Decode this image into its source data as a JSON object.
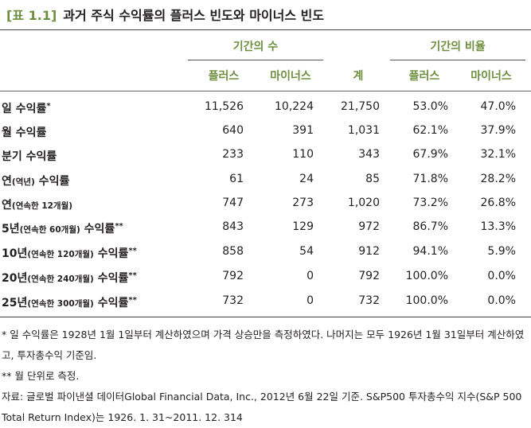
{
  "title": {
    "tag": "[표 1.1]",
    "text": "과거 주식 수익률의 플러스 빈도와 마이너스 빈도"
  },
  "header": {
    "group_count": "기간의 수",
    "group_ratio": "기간의 비율",
    "plus": "플러스",
    "minus": "마이너스",
    "total": "계",
    "plus2": "플러스",
    "minus2": "마이너스"
  },
  "rows": [
    {
      "main": "일 수익률",
      "small": "",
      "main2": "",
      "mark": "*",
      "plus": "11,526",
      "minus": "10,224",
      "total": "21,750",
      "plus_pct": "53.0%",
      "minus_pct": "47.0%"
    },
    {
      "main": "월 수익률",
      "small": "",
      "main2": "",
      "mark": "",
      "plus": "640",
      "minus": "391",
      "total": "1,031",
      "plus_pct": "62.1%",
      "minus_pct": "37.9%"
    },
    {
      "main": "분기 수익률",
      "small": "",
      "main2": "",
      "mark": "",
      "plus": "233",
      "minus": "110",
      "total": "343",
      "plus_pct": "67.9%",
      "minus_pct": "32.1%"
    },
    {
      "main": "연",
      "small": "(역년)",
      "main2": " 수익률",
      "mark": "",
      "plus": "61",
      "minus": "24",
      "total": "85",
      "plus_pct": "71.8%",
      "minus_pct": "28.2%"
    },
    {
      "main": "연",
      "small": "(연속한 12개월)",
      "main2": "",
      "mark": "",
      "plus": "747",
      "minus": "273",
      "total": "1,020",
      "plus_pct": "73.2%",
      "minus_pct": "26.8%"
    },
    {
      "main": "5년",
      "small": "(연속한 60개월)",
      "main2": " 수익률",
      "mark": "**",
      "plus": "843",
      "minus": "129",
      "total": "972",
      "plus_pct": "86.7%",
      "minus_pct": "13.3%"
    },
    {
      "main": "10년",
      "small": "(연속한 120개월)",
      "main2": " 수익률",
      "mark": "**",
      "plus": "858",
      "minus": "54",
      "total": "912",
      "plus_pct": "94.1%",
      "minus_pct": "5.9%"
    },
    {
      "main": "20년",
      "small": "(연속한 240개월)",
      "main2": " 수익률",
      "mark": "**",
      "plus": "792",
      "minus": "0",
      "total": "792",
      "plus_pct": "100.0%",
      "minus_pct": "0.0%"
    },
    {
      "main": "25년",
      "small": "(연속한 300개월)",
      "main2": " 수익률",
      "mark": "**",
      "plus": "732",
      "minus": "0",
      "total": "732",
      "plus_pct": "100.0%",
      "minus_pct": "0.0%"
    }
  ],
  "notes": {
    "n1": "* 일 수익률은 1928년 1월 1일부터 계산하였으며 가격 상승만을 측정하였다. 나머지는 모두 1926년 1월 31일부터 계산하였고, 투자총수익 기준임.",
    "n2": "** 월 단위로 측정.",
    "n3": "자료: 글로벌 파이낸셜 데이터Global Financial Data, Inc., 2012년 6월 22일 기준. S&P500 투자총수익 지수(S&P 500 Total Return Index)는 1926. 1. 31~2011. 12. 314"
  }
}
